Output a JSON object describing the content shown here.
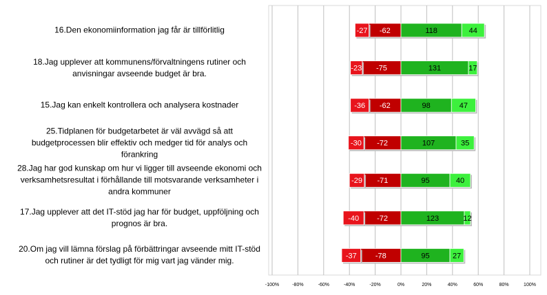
{
  "chart_data": {
    "type": "diverging-stacked-bar",
    "categories": [
      "16.Den ekonomiinformation jag får är tillförlitlig",
      "18.Jag upplever att kommunens/förvaltningens rutiner och anvisningar avseende budget är bra.",
      "15.Jag kan enkelt kontrollera och analysera kostnader",
      "25.Tidplanen för budgetarbetet är väl avvägd så att budgetprocessen blir effektiv och medger tid för analys och förankring",
      "28.Jag har god kunskap om hur vi ligger till avseende ekonomi och verksamhetsresultat i förhållande till motsvarande verksamheter i andra kommuner",
      "17.Jag upplever att det IT-stöd jag har för budget, uppföljning och prognos är bra.",
      "20.Om jag vill lämna förslag på förbättringar avseende mitt IT-stöd och rutiner är det tydligt för mig vart jag vänder mig."
    ],
    "series": [
      {
        "color": "#c00000",
        "values": [
          -62,
          -75,
          -62,
          -72,
          -71,
          -72,
          -78
        ]
      },
      {
        "color": "#e8141c",
        "values": [
          -27,
          -23,
          -36,
          -30,
          -29,
          -40,
          -37
        ]
      },
      {
        "color": "#1fb31f",
        "values": [
          118,
          131,
          98,
          107,
          95,
          123,
          95
        ]
      },
      {
        "color": "#3df03d",
        "values": [
          44,
          17,
          47,
          35,
          40,
          12,
          27
        ]
      }
    ],
    "xlim": [
      -250,
      250
    ],
    "xticks": [
      {
        "value": -250,
        "label": "-100%"
      },
      {
        "value": -200,
        "label": "-80%"
      },
      {
        "value": -150,
        "label": "-60%"
      },
      {
        "value": -100,
        "label": "-40%"
      },
      {
        "value": -50,
        "label": "-20%"
      },
      {
        "value": 0,
        "label": "0%"
      },
      {
        "value": 50,
        "label": "20%"
      },
      {
        "value": 100,
        "label": "40%"
      },
      {
        "value": 150,
        "label": "60%"
      },
      {
        "value": 200,
        "label": "80%"
      },
      {
        "value": 250,
        "label": "100%"
      }
    ],
    "grid": true
  }
}
